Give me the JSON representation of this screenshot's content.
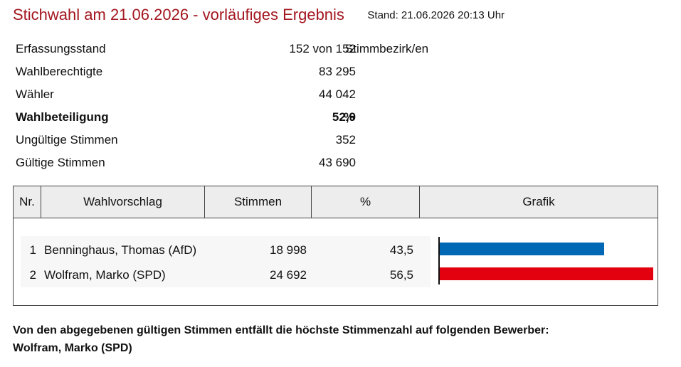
{
  "header": {
    "title": "Stichwahl am 21.06.2026 - vorläufiges Ergebnis",
    "stand": "Stand: 21.06.2026  20:13 Uhr"
  },
  "stats": [
    {
      "label": "Erfassungsstand",
      "value": "152 von 152",
      "unit": "Stimmbezirk/en"
    },
    {
      "label": "Wahlberechtigte",
      "value": "83 295",
      "unit": ""
    },
    {
      "label": "Wähler",
      "value": "44 042",
      "unit": ""
    },
    {
      "label": "Wahlbeteiligung",
      "value": "52,9",
      "unit": "%"
    },
    {
      "label": "Ungültige Stimmen",
      "value": "352",
      "unit": ""
    },
    {
      "label": "Gültige Stimmen",
      "value": "43 690",
      "unit": ""
    }
  ],
  "table": {
    "headers": {
      "nr": "Nr.",
      "wahlvorschlag": "Wahlvorschlag",
      "stimmen": "Stimmen",
      "prozent": "%",
      "grafik": "Grafik"
    },
    "rows": [
      {
        "nr": "1",
        "name": "Benninghaus, Thomas (AfD)",
        "stimmen": "18 998",
        "prozent": "43,5",
        "share": 43.5,
        "color": "#0068b4"
      },
      {
        "nr": "2",
        "name": "Wolfram, Marko (SPD)",
        "stimmen": "24 692",
        "prozent": "56,5",
        "share": 56.5,
        "color": "#e3000f"
      }
    ]
  },
  "footer": {
    "line1": "Von den abgegebenen gültigen Stimmen entfällt die höchste Stimmenzahl auf folgenden Bewerber:",
    "line2": "Wolfram, Marko (SPD)"
  }
}
